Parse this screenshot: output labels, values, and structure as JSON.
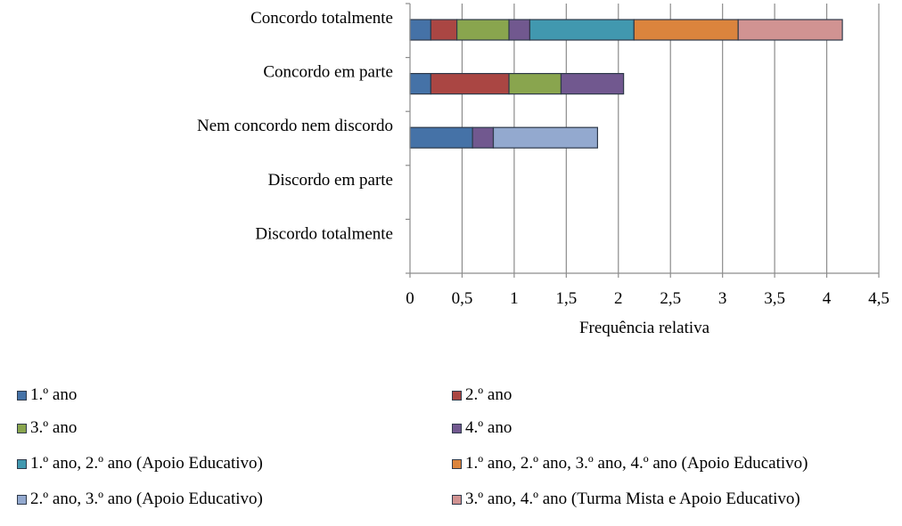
{
  "chart_data": {
    "type": "bar",
    "orientation": "horizontal",
    "stacked": true,
    "title": "",
    "xlabel": "Frequência relativa",
    "ylabel": "",
    "xlim": [
      0,
      4.5
    ],
    "xticks": [
      "0",
      "0,5",
      "1",
      "1,5",
      "2",
      "2,5",
      "3",
      "3,5",
      "4",
      "4,5"
    ],
    "grid": true,
    "legend_position": "bottom",
    "categories": [
      "Concordo totalmente",
      "Concordo em parte",
      "Nem concordo nem discordo",
      "Discordo em parte",
      "Discordo totalmente"
    ],
    "series": [
      {
        "name": "1.º ano",
        "color": "#4572A7",
        "values": [
          0.2,
          0.2,
          0.6,
          0,
          0
        ]
      },
      {
        "name": "2.º ano",
        "color": "#AA4643",
        "values": [
          0.25,
          0.75,
          0,
          0,
          0
        ]
      },
      {
        "name": "3.º ano",
        "color": "#89A54E",
        "values": [
          0.5,
          0.5,
          0,
          0,
          0
        ]
      },
      {
        "name": "4.º ano",
        "color": "#71588F",
        "values": [
          0.2,
          0.6,
          0.2,
          0,
          0
        ]
      },
      {
        "name": "1.º ano, 2.º ano (Apoio Educativo)",
        "color": "#4198AF",
        "values": [
          1.0,
          0,
          0,
          0,
          0
        ]
      },
      {
        "name": "1.º ano, 2.º ano, 3.º ano, 4.º ano (Apoio Educativo)",
        "color": "#DB843D",
        "values": [
          1.0,
          0,
          0,
          0,
          0
        ]
      },
      {
        "name": "2.º ano, 3.º ano (Apoio Educativo)",
        "color": "#93A9CF",
        "values": [
          0,
          0,
          1.0,
          0,
          0
        ]
      },
      {
        "name": "3.º ano, 4.º ano (Turma Mista e Apoio Educativo)",
        "color": "#D19392",
        "values": [
          1.0,
          0,
          0,
          0,
          0
        ]
      }
    ]
  }
}
